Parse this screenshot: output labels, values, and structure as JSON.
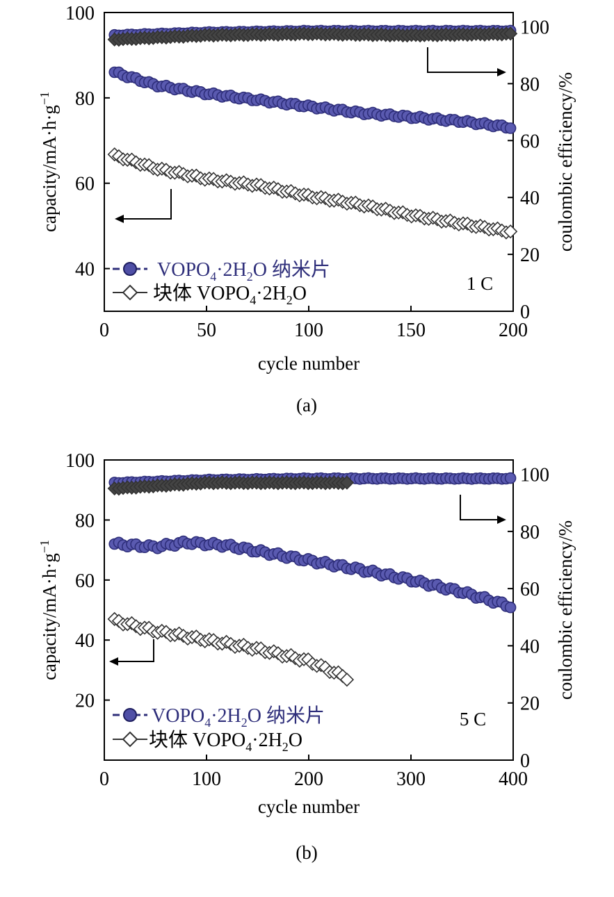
{
  "colors": {
    "nano": "#2e2e7a",
    "nano_fill": "#5a5ab0",
    "bulk": "#333333",
    "axis": "#000000"
  },
  "chart_data": [
    {
      "type": "line",
      "panel_label": "(a)",
      "rate_label": "1 C",
      "xlabel": "cycle number",
      "ylabel_left": "capacity/mA·h·g",
      "ylabel_left_sup": "−1",
      "ylabel_right": "coulombic efficiency/%",
      "xlim": [
        0,
        200
      ],
      "xticks": [
        "0",
        "50",
        "100",
        "150",
        "200"
      ],
      "ylim_left": [
        30,
        100
      ],
      "yticks_left": [
        "40",
        "60",
        "80",
        "100"
      ],
      "ylim_right": [
        0,
        105
      ],
      "yticks_right": [
        "0",
        "20",
        "40",
        "60",
        "80",
        "100"
      ],
      "legend": {
        "nano_prefix": "VOPO",
        "nano_sub1": "4",
        "nano_mid": "·2H",
        "nano_sub2": "2",
        "nano_suffix": "O 纳米片",
        "bulk_prefix": "块体 VOPO",
        "bulk_sub1": "4",
        "bulk_mid": "·2H",
        "bulk_sub2": "2",
        "bulk_suffix": "O"
      },
      "series": [
        {
          "name": "VOPO4·2H2O 纳米片 capacity",
          "axis": "left",
          "marker": "circle",
          "x": [
            5,
            25,
            50,
            75,
            100,
            125,
            150,
            175,
            200
          ],
          "values": [
            86,
            83,
            81,
            79.5,
            78,
            76.5,
            75.5,
            74.5,
            73
          ]
        },
        {
          "name": "块体 VOPO4·2H2O capacity",
          "axis": "left",
          "marker": "diamond",
          "x": [
            5,
            25,
            50,
            75,
            100,
            125,
            150,
            175,
            200
          ],
          "values": [
            66.5,
            63.5,
            61,
            59.5,
            57,
            55,
            52.5,
            50.5,
            48.5
          ]
        },
        {
          "name": "VOPO4·2H2O 纳米片 coulombic efficiency",
          "axis": "right",
          "marker": "circle",
          "x": [
            5,
            50,
            100,
            150,
            200
          ],
          "values": [
            97,
            98,
            98.5,
            98.5,
            98.5
          ]
        },
        {
          "name": "块体 VOPO4·2H2O coulombic efficiency",
          "axis": "right",
          "marker": "diamond",
          "x": [
            5,
            50,
            100,
            150,
            200
          ],
          "values": [
            95.5,
            97,
            97.5,
            97,
            97.5
          ]
        }
      ]
    },
    {
      "type": "line",
      "panel_label": "(b)",
      "rate_label": "5 C",
      "xlabel": "cycle number",
      "ylabel_left": "capacity/mA·h·g",
      "ylabel_left_sup": "−1",
      "ylabel_right": "coulombic efficiency/%",
      "xlim": [
        0,
        400
      ],
      "xticks": [
        "0",
        "100",
        "200",
        "300",
        "400"
      ],
      "ylim_left": [
        0,
        100
      ],
      "yticks_left": [
        "20",
        "40",
        "60",
        "80",
        "100"
      ],
      "ylim_right": [
        0,
        105
      ],
      "yticks_right": [
        "0",
        "20",
        "40",
        "60",
        "80",
        "100"
      ],
      "legend": {
        "nano_prefix": "VOPO",
        "nano_sub1": "4",
        "nano_mid": "·2H",
        "nano_sub2": "2",
        "nano_suffix": "O 纳米片",
        "bulk_prefix": "块体 VOPO",
        "bulk_sub1": "4",
        "bulk_mid": "·2H",
        "bulk_sub2": "2",
        "bulk_suffix": "O"
      },
      "series": [
        {
          "name": "VOPO4·2H2O 纳米片 capacity",
          "axis": "left",
          "marker": "circle",
          "x": [
            10,
            50,
            80,
            120,
            160,
            200,
            250,
            300,
            350,
            400
          ],
          "values": [
            72,
            71,
            72.5,
            71.5,
            69,
            66.5,
            63.5,
            60,
            56,
            51
          ]
        },
        {
          "name": "块体 VOPO4·2H2O capacity",
          "axis": "left",
          "marker": "diamond",
          "x": [
            10,
            50,
            100,
            150,
            200,
            240
          ],
          "values": [
            46.5,
            43,
            40,
            37,
            33,
            27
          ]
        },
        {
          "name": "VOPO4·2H2O 纳米片 coulombic efficiency",
          "axis": "right",
          "marker": "circle",
          "x": [
            10,
            100,
            200,
            300,
            400
          ],
          "values": [
            97,
            98,
            98.5,
            98.5,
            98.5
          ]
        },
        {
          "name": "块体 VOPO4·2H2O coulombic efficiency",
          "axis": "right",
          "marker": "diamond",
          "x": [
            10,
            100,
            200,
            240
          ],
          "values": [
            95,
            97,
            97,
            97
          ]
        }
      ]
    }
  ]
}
